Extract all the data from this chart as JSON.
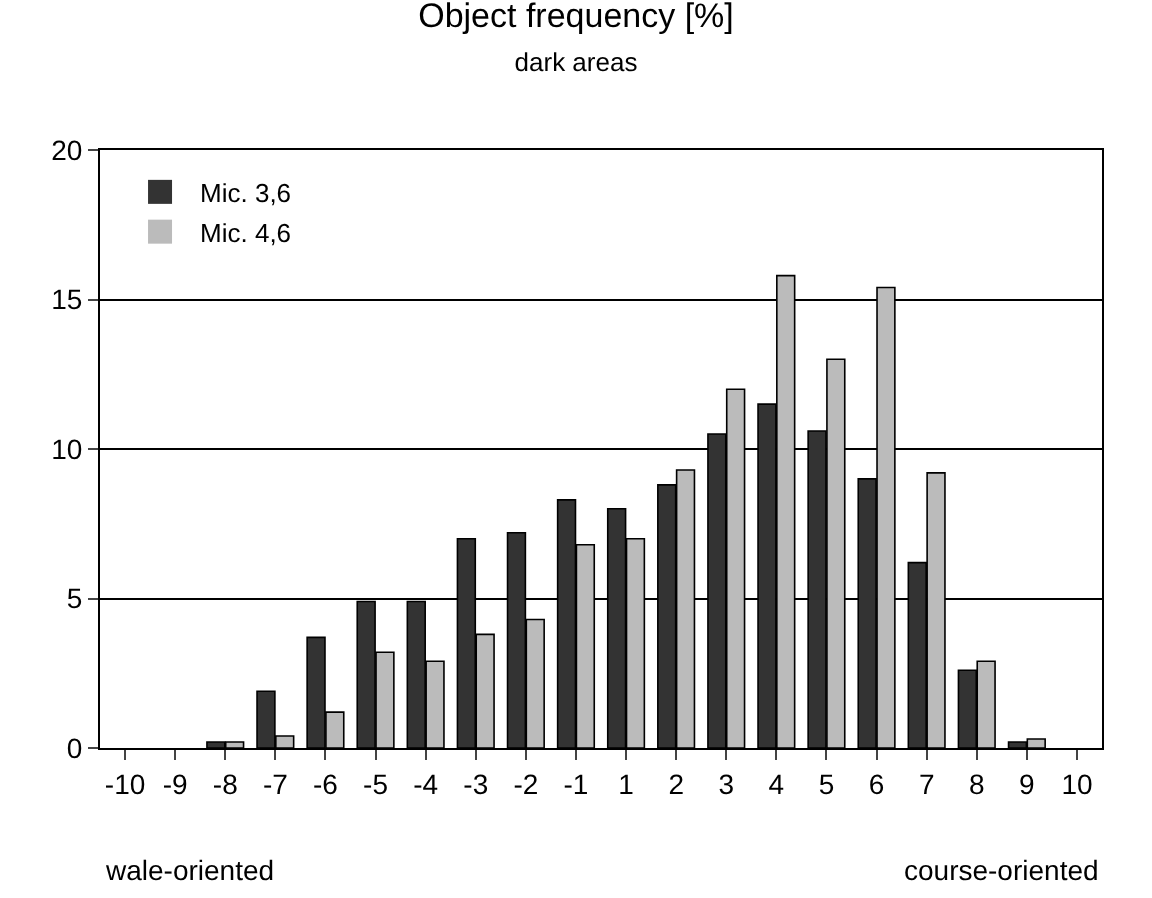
{
  "chart_data": {
    "type": "bar",
    "title": "Object frequency [%]",
    "subtitle": "dark areas",
    "categories": [
      "-10",
      "-9",
      "-8",
      "-7",
      "-6",
      "-5",
      "-4",
      "-3",
      "-2",
      "-1",
      "1",
      "2",
      "3",
      "4",
      "5",
      "6",
      "7",
      "8",
      "9",
      "10"
    ],
    "series": [
      {
        "name": "Mic. 3,6",
        "color": "#333333",
        "values": [
          0,
          0,
          0.2,
          1.9,
          3.7,
          4.9,
          4.9,
          7.0,
          7.2,
          8.3,
          8.0,
          8.8,
          10.5,
          11.5,
          10.6,
          9.0,
          6.2,
          2.6,
          0.2,
          0
        ]
      },
      {
        "name": "Mic. 4,6",
        "color": "#bbbbbb",
        "values": [
          0,
          0,
          0.2,
          0.4,
          1.2,
          3.2,
          2.9,
          3.8,
          4.3,
          6.8,
          7.0,
          9.3,
          12.0,
          15.8,
          13.0,
          15.4,
          9.2,
          2.9,
          0.3,
          0
        ]
      }
    ],
    "ylim": [
      0,
      20
    ],
    "yticks": [
      0,
      5,
      10,
      15,
      20
    ],
    "grid": "y",
    "legend": "top left",
    "annotations": [
      "wale-oriented",
      "course-oriented"
    ]
  }
}
